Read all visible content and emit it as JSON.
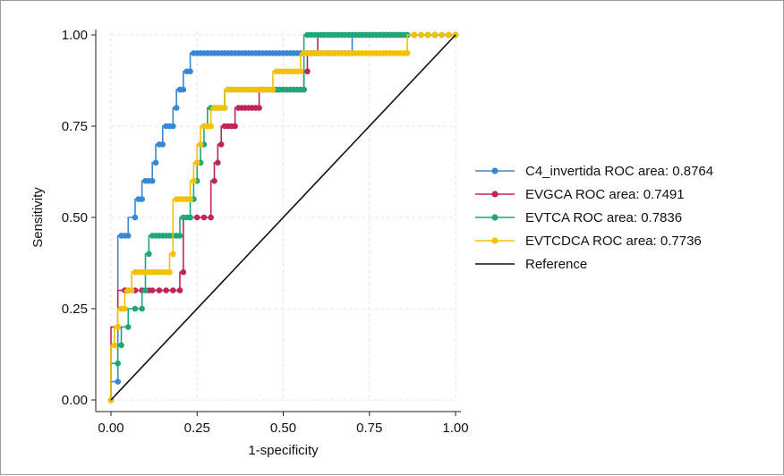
{
  "chart_data": {
    "type": "line",
    "title": "",
    "xlabel": "1-specificity",
    "ylabel": "Sensitivity",
    "xlim": [
      0,
      1
    ],
    "ylim": [
      0,
      1
    ],
    "xticks": [
      "0.00",
      "0.25",
      "0.50",
      "0.75",
      "1.00"
    ],
    "yticks": [
      "0.00",
      "0.25",
      "0.50",
      "0.75",
      "1.00"
    ],
    "grid": true,
    "legend_position": "right",
    "series": [
      {
        "name": "C4_invertida ROC area: 0.8764",
        "color": "#3a86d6",
        "marker": "circle",
        "x": [
          0,
          0.02,
          0.03,
          0.04,
          0.05,
          0.07,
          0.08,
          0.09,
          0.1,
          0.11,
          0.12,
          0.13,
          0.14,
          0.15,
          0.16,
          0.17,
          0.18,
          0.19,
          0.2,
          0.21,
          0.22,
          0.23,
          0.24,
          0.25,
          0.26,
          0.27,
          0.28,
          0.29,
          0.3,
          0.31,
          0.32,
          0.33,
          0.34,
          0.35,
          0.36,
          0.37,
          0.38,
          0.39,
          0.4,
          0.41,
          0.42,
          0.43,
          0.44,
          0.45,
          0.46,
          0.47,
          0.48,
          0.49,
          0.5,
          0.51,
          0.52,
          0.53,
          0.54,
          0.55,
          0.56,
          0.57,
          0.58,
          0.59,
          0.6,
          0.61,
          0.62,
          0.63,
          0.64,
          0.65,
          0.66,
          0.67,
          0.68,
          0.69,
          0.7,
          0.71,
          0.72,
          0.73,
          0.74,
          0.75,
          0.76,
          0.77,
          0.78,
          0.79,
          0.8,
          0.81,
          0.82,
          0.83,
          0.84,
          0.85,
          0.86,
          0.88,
          0.9,
          0.92,
          0.94,
          0.96,
          0.98,
          1.0
        ],
        "y": [
          0,
          0.05,
          0.45,
          0.45,
          0.45,
          0.5,
          0.55,
          0.55,
          0.6,
          0.6,
          0.6,
          0.65,
          0.7,
          0.7,
          0.75,
          0.75,
          0.75,
          0.8,
          0.85,
          0.85,
          0.9,
          0.9,
          0.95,
          0.95,
          0.95,
          0.95,
          0.95,
          0.95,
          0.95,
          0.95,
          0.95,
          0.95,
          0.95,
          0.95,
          0.95,
          0.95,
          0.95,
          0.95,
          0.95,
          0.95,
          0.95,
          0.95,
          0.95,
          0.95,
          0.95,
          0.95,
          0.95,
          0.95,
          0.95,
          0.95,
          0.95,
          0.95,
          0.95,
          0.95,
          0.95,
          0.95,
          0.95,
          0.95,
          0.95,
          0.95,
          0.95,
          0.95,
          0.95,
          0.95,
          0.95,
          0.95,
          0.95,
          0.95,
          0.95,
          1.0,
          1.0,
          1.0,
          1.0,
          1.0,
          1.0,
          1.0,
          1.0,
          1.0,
          1.0,
          1.0,
          1.0,
          1.0,
          1.0,
          1.0,
          1.0,
          1.0,
          1.0,
          1.0,
          1.0,
          1.0,
          1.0,
          1.0
        ]
      },
      {
        "name": "EVGCA ROC area: 0.7491",
        "color": "#c0245c",
        "marker": "circle",
        "x": [
          0,
          0.02,
          0.04,
          0.05,
          0.07,
          0.09,
          0.11,
          0.12,
          0.14,
          0.16,
          0.18,
          0.2,
          0.21,
          0.23,
          0.25,
          0.27,
          0.29,
          0.3,
          0.31,
          0.32,
          0.33,
          0.34,
          0.35,
          0.36,
          0.37,
          0.38,
          0.39,
          0.4,
          0.41,
          0.42,
          0.43,
          0.44,
          0.45,
          0.46,
          0.47,
          0.48,
          0.49,
          0.5,
          0.51,
          0.52,
          0.53,
          0.54,
          0.55,
          0.56,
          0.57,
          0.58,
          0.59,
          0.6,
          0.61,
          0.62,
          0.63,
          0.64,
          0.65,
          0.66,
          0.67,
          0.68,
          0.69,
          0.7,
          0.71,
          0.72,
          0.73,
          0.74,
          0.75,
          0.76,
          0.77,
          0.78,
          0.79,
          0.8,
          0.81,
          0.82,
          0.83,
          0.84,
          0.85,
          0.86,
          0.88,
          0.9,
          0.92,
          0.94,
          0.96,
          0.98,
          1.0
        ],
        "y": [
          0,
          0.2,
          0.3,
          0.3,
          0.3,
          0.3,
          0.3,
          0.3,
          0.3,
          0.3,
          0.3,
          0.3,
          0.35,
          0.5,
          0.5,
          0.5,
          0.5,
          0.6,
          0.65,
          0.7,
          0.75,
          0.75,
          0.75,
          0.75,
          0.8,
          0.8,
          0.8,
          0.8,
          0.8,
          0.8,
          0.8,
          0.85,
          0.85,
          0.85,
          0.85,
          0.85,
          0.85,
          0.85,
          0.85,
          0.85,
          0.85,
          0.85,
          0.85,
          0.85,
          0.9,
          0.95,
          0.95,
          0.95,
          1.0,
          1.0,
          1.0,
          1.0,
          1.0,
          1.0,
          1.0,
          1.0,
          1.0,
          1.0,
          1.0,
          1.0,
          1.0,
          1.0,
          1.0,
          1.0,
          1.0,
          1.0,
          1.0,
          1.0,
          1.0,
          1.0,
          1.0,
          1.0,
          1.0,
          1.0,
          1.0,
          1.0,
          1.0,
          1.0,
          1.0,
          1.0,
          1.0
        ]
      },
      {
        "name": "EVTCA ROC area: 0.7836",
        "color": "#1fa67a",
        "marker": "circle",
        "x": [
          0,
          0.02,
          0.03,
          0.05,
          0.07,
          0.09,
          0.1,
          0.11,
          0.12,
          0.13,
          0.14,
          0.15,
          0.16,
          0.17,
          0.18,
          0.19,
          0.2,
          0.21,
          0.22,
          0.23,
          0.24,
          0.25,
          0.26,
          0.27,
          0.28,
          0.29,
          0.3,
          0.31,
          0.32,
          0.33,
          0.34,
          0.35,
          0.36,
          0.37,
          0.38,
          0.39,
          0.4,
          0.41,
          0.42,
          0.43,
          0.44,
          0.45,
          0.46,
          0.47,
          0.48,
          0.49,
          0.5,
          0.51,
          0.52,
          0.53,
          0.54,
          0.55,
          0.56,
          0.57,
          0.58,
          0.59,
          0.6,
          0.61,
          0.62,
          0.63,
          0.64,
          0.65,
          0.66,
          0.67,
          0.68,
          0.69,
          0.7,
          0.71,
          0.72,
          0.73,
          0.74,
          0.75,
          0.76,
          0.77,
          0.78,
          0.79,
          0.8,
          0.81,
          0.82,
          0.83,
          0.84,
          0.85,
          0.86,
          0.88,
          0.9,
          0.92,
          0.94,
          0.96,
          0.98,
          1.0
        ],
        "y": [
          0,
          0.1,
          0.15,
          0.2,
          0.25,
          0.25,
          0.3,
          0.4,
          0.45,
          0.45,
          0.45,
          0.45,
          0.45,
          0.45,
          0.45,
          0.45,
          0.45,
          0.5,
          0.5,
          0.5,
          0.55,
          0.6,
          0.65,
          0.7,
          0.75,
          0.8,
          0.8,
          0.8,
          0.8,
          0.8,
          0.85,
          0.85,
          0.85,
          0.85,
          0.85,
          0.85,
          0.85,
          0.85,
          0.85,
          0.85,
          0.85,
          0.85,
          0.85,
          0.85,
          0.85,
          0.85,
          0.85,
          0.85,
          0.85,
          0.85,
          0.85,
          0.85,
          0.85,
          1.0,
          1.0,
          1.0,
          1.0,
          1.0,
          1.0,
          1.0,
          1.0,
          1.0,
          1.0,
          1.0,
          1.0,
          1.0,
          1.0,
          1.0,
          1.0,
          1.0,
          1.0,
          1.0,
          1.0,
          1.0,
          1.0,
          1.0,
          1.0,
          1.0,
          1.0,
          1.0,
          1.0,
          1.0,
          1.0,
          1.0,
          1.0,
          1.0,
          1.0,
          1.0,
          1.0,
          1.0
        ]
      },
      {
        "name": "EVTCDCA ROC area: 0.7736",
        "color": "#f2c100",
        "marker": "circle",
        "x": [
          0,
          0.01,
          0.02,
          0.03,
          0.04,
          0.05,
          0.06,
          0.07,
          0.08,
          0.09,
          0.1,
          0.11,
          0.12,
          0.13,
          0.14,
          0.15,
          0.16,
          0.17,
          0.18,
          0.19,
          0.2,
          0.21,
          0.22,
          0.23,
          0.24,
          0.25,
          0.26,
          0.27,
          0.28,
          0.29,
          0.3,
          0.31,
          0.32,
          0.33,
          0.34,
          0.35,
          0.36,
          0.37,
          0.38,
          0.39,
          0.4,
          0.41,
          0.42,
          0.43,
          0.44,
          0.45,
          0.46,
          0.47,
          0.48,
          0.49,
          0.5,
          0.51,
          0.52,
          0.53,
          0.54,
          0.55,
          0.56,
          0.57,
          0.58,
          0.59,
          0.6,
          0.61,
          0.62,
          0.63,
          0.64,
          0.65,
          0.66,
          0.67,
          0.68,
          0.69,
          0.7,
          0.71,
          0.72,
          0.73,
          0.74,
          0.75,
          0.76,
          0.77,
          0.78,
          0.79,
          0.8,
          0.81,
          0.82,
          0.83,
          0.84,
          0.85,
          0.86,
          0.88,
          0.9,
          0.92,
          0.94,
          0.96,
          0.98,
          1.0
        ],
        "y": [
          0,
          0.15,
          0.2,
          0.25,
          0.25,
          0.3,
          0.3,
          0.35,
          0.35,
          0.35,
          0.35,
          0.35,
          0.35,
          0.35,
          0.35,
          0.35,
          0.35,
          0.35,
          0.4,
          0.55,
          0.55,
          0.55,
          0.55,
          0.55,
          0.6,
          0.65,
          0.7,
          0.75,
          0.75,
          0.75,
          0.8,
          0.8,
          0.8,
          0.8,
          0.85,
          0.85,
          0.85,
          0.85,
          0.85,
          0.85,
          0.85,
          0.85,
          0.85,
          0.85,
          0.85,
          0.85,
          0.85,
          0.85,
          0.9,
          0.9,
          0.9,
          0.9,
          0.9,
          0.9,
          0.9,
          0.9,
          0.95,
          0.95,
          0.95,
          0.95,
          0.95,
          0.95,
          0.95,
          0.95,
          0.95,
          0.95,
          0.95,
          0.95,
          0.95,
          0.95,
          0.95,
          0.95,
          0.95,
          0.95,
          0.95,
          0.95,
          0.95,
          0.95,
          0.95,
          0.95,
          0.95,
          0.95,
          0.95,
          0.95,
          0.95,
          0.95,
          0.95,
          1.0,
          1.0,
          1.0,
          1.0,
          1.0,
          1.0,
          1.0
        ]
      },
      {
        "name": "Reference",
        "color": "#111111",
        "marker": "none",
        "x": [
          0,
          1
        ],
        "y": [
          0,
          1
        ]
      }
    ]
  }
}
